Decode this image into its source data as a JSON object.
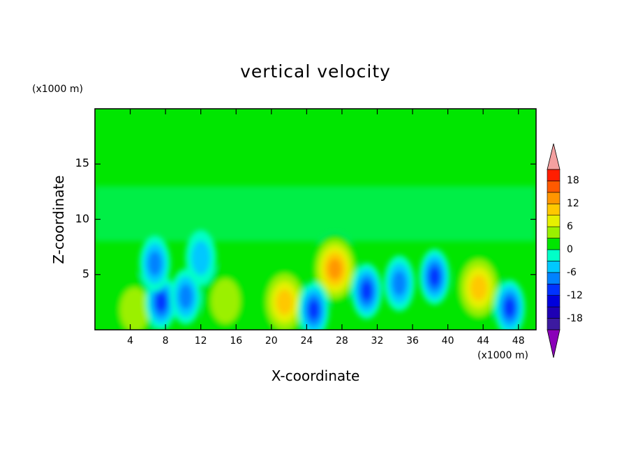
{
  "chart_data": {
    "type": "heatmap",
    "title": "vertical velocity",
    "xlabel": "X-coordinate",
    "ylabel": "Z-coordinate",
    "x_unit": "(x1000 m)",
    "z_unit": "(x1000 m)",
    "xlim": [
      0,
      50
    ],
    "ylim": [
      0,
      20
    ],
    "x_ticks": [
      4,
      8,
      12,
      16,
      20,
      24,
      28,
      32,
      36,
      40,
      44,
      48
    ],
    "x_tick_labels": [
      "4",
      "8",
      "12",
      "16",
      "20",
      "24",
      "28",
      "32",
      "36",
      "40",
      "44",
      "48"
    ],
    "y_ticks": [
      5,
      10,
      15
    ],
    "y_tick_labels": [
      "5",
      "10",
      "15"
    ],
    "colorbar": {
      "levels": [
        -21,
        -18,
        -15,
        -12,
        -9,
        -6,
        -3,
        0,
        3,
        6,
        9,
        12,
        15,
        18,
        21
      ],
      "tick_values": [
        18,
        12,
        6,
        0,
        -6,
        -12,
        -18
      ],
      "tick_labels": [
        "18",
        "12",
        "6",
        "0",
        "-6",
        "-12",
        "-18"
      ],
      "colors": [
        "#3c1aa0",
        "#1e00b4",
        "#0000dc",
        "#0032ff",
        "#0082ff",
        "#00c8ff",
        "#00ffc8",
        "#00e600",
        "#9bf000",
        "#e6f000",
        "#ffc800",
        "#ff9600",
        "#ff5a00",
        "#ff1e00"
      ],
      "under_color": "#8a00b8",
      "over_color": "#f4a0a0"
    },
    "features": [
      {
        "name": "updraft",
        "x": 27.2,
        "z": 5.5,
        "value": 15
      },
      {
        "name": "updraft",
        "x": 43.5,
        "z": 3.8,
        "value": 13
      },
      {
        "name": "updraft",
        "x": 21.5,
        "z": 2.5,
        "value": 11
      },
      {
        "name": "updraft",
        "x": 4.5,
        "z": 1.8,
        "value": 7
      },
      {
        "name": "updraft",
        "x": 14.8,
        "z": 2.6,
        "value": 5
      },
      {
        "name": "downdraft",
        "x": 24.8,
        "z": 1.8,
        "value": -13
      },
      {
        "name": "downdraft",
        "x": 30.8,
        "z": 3.5,
        "value": -12
      },
      {
        "name": "downdraft",
        "x": 38.5,
        "z": 4.8,
        "value": -11
      },
      {
        "name": "downdraft",
        "x": 7.5,
        "z": 2.5,
        "value": -13
      },
      {
        "name": "downdraft",
        "x": 6.8,
        "z": 6.0,
        "value": -10
      },
      {
        "name": "downdraft",
        "x": 10.3,
        "z": 3.0,
        "value": -10
      },
      {
        "name": "downdraft",
        "x": 47.0,
        "z": 2.0,
        "value": -11
      },
      {
        "name": "downdraft",
        "x": 34.5,
        "z": 4.2,
        "value": -9
      },
      {
        "name": "downdraft",
        "x": 12.0,
        "z": 6.5,
        "value": -7
      }
    ]
  }
}
